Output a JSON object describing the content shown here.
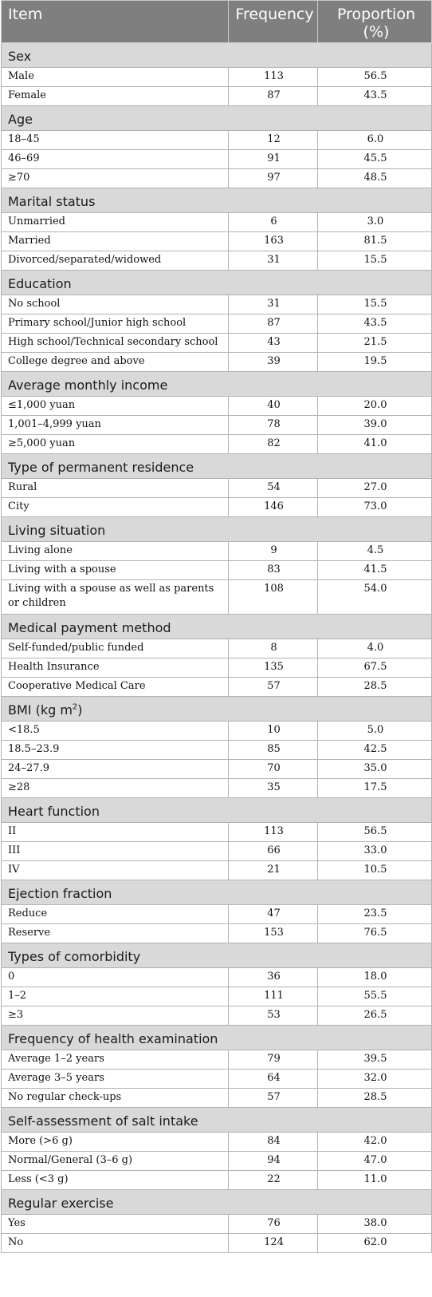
{
  "headers": {
    "item": "Item",
    "frequency": "Frequency",
    "proportion": "Proportion (%)"
  },
  "sections": [
    {
      "title": "Sex",
      "rows": [
        {
          "item": "Male",
          "frequency": "113",
          "proportion": "56.5"
        },
        {
          "item": "Female",
          "frequency": "87",
          "proportion": "43.5"
        }
      ]
    },
    {
      "title": "Age",
      "rows": [
        {
          "item": "18–45",
          "frequency": "12",
          "proportion": "6.0"
        },
        {
          "item": "46–69",
          "frequency": "91",
          "proportion": "45.5"
        },
        {
          "item": "≥70",
          "frequency": "97",
          "proportion": "48.5"
        }
      ]
    },
    {
      "title": "Marital status",
      "rows": [
        {
          "item": "Unmarried",
          "frequency": "6",
          "proportion": "3.0"
        },
        {
          "item": "Married",
          "frequency": "163",
          "proportion": "81.5"
        },
        {
          "item": "Divorced/separated/widowed",
          "frequency": "31",
          "proportion": "15.5"
        }
      ]
    },
    {
      "title": "Education",
      "rows": [
        {
          "item": "No school",
          "frequency": "31",
          "proportion": "15.5"
        },
        {
          "item": "Primary school/Junior high school",
          "frequency": "87",
          "proportion": "43.5"
        },
        {
          "item": "High school/Technical secondary school",
          "frequency": "43",
          "proportion": "21.5"
        },
        {
          "item": "College degree and above",
          "frequency": "39",
          "proportion": "19.5"
        }
      ]
    },
    {
      "title": "Average monthly income",
      "rows": [
        {
          "item": "≤1,000 yuan",
          "frequency": "40",
          "proportion": "20.0"
        },
        {
          "item": "1,001–4,999 yuan",
          "frequency": "78",
          "proportion": "39.0"
        },
        {
          "item": "≥5,000 yuan",
          "frequency": "82",
          "proportion": "41.0"
        }
      ]
    },
    {
      "title": "Type of permanent residence",
      "rows": [
        {
          "item": "Rural",
          "frequency": "54",
          "proportion": "27.0"
        },
        {
          "item": "City",
          "frequency": "146",
          "proportion": "73.0"
        }
      ]
    },
    {
      "title": "Living situation",
      "rows": [
        {
          "item": "Living alone",
          "frequency": "9",
          "proportion": "4.5"
        },
        {
          "item": "Living with a spouse",
          "frequency": "83",
          "proportion": "41.5"
        },
        {
          "item": "Living with a spouse as well as parents or children",
          "frequency": "108",
          "proportion": "54.0"
        }
      ]
    },
    {
      "title": "Medical payment method",
      "rows": [
        {
          "item": "Self-funded/public funded",
          "frequency": "8",
          "proportion": "4.0"
        },
        {
          "item": "Health Insurance",
          "frequency": "135",
          "proportion": "67.5"
        },
        {
          "item": "Cooperative Medical Care",
          "frequency": "57",
          "proportion": "28.5"
        }
      ]
    },
    {
      "title": "BMI (kg m",
      "title_sup": "2",
      "title_after": ")",
      "rows": [
        {
          "item": "<18.5",
          "frequency": "10",
          "proportion": "5.0"
        },
        {
          "item": "18.5–23.9",
          "frequency": "85",
          "proportion": "42.5"
        },
        {
          "item": "24–27.9",
          "frequency": "70",
          "proportion": "35.0"
        },
        {
          "item": "≥28",
          "frequency": "35",
          "proportion": "17.5"
        }
      ]
    },
    {
      "title": "Heart function",
      "rows": [
        {
          "item": "II",
          "frequency": "113",
          "proportion": "56.5"
        },
        {
          "item": "III",
          "frequency": "66",
          "proportion": "33.0"
        },
        {
          "item": "IV",
          "frequency": "21",
          "proportion": "10.5"
        }
      ]
    },
    {
      "title": "Ejection fraction",
      "rows": [
        {
          "item": "Reduce",
          "frequency": "47",
          "proportion": "23.5"
        },
        {
          "item": "Reserve",
          "frequency": "153",
          "proportion": "76.5"
        }
      ]
    },
    {
      "title": "Types of comorbidity",
      "rows": [
        {
          "item": "0",
          "frequency": "36",
          "proportion": "18.0"
        },
        {
          "item": "1–2",
          "frequency": "111",
          "proportion": "55.5"
        },
        {
          "item": "≥3",
          "frequency": "53",
          "proportion": "26.5"
        }
      ]
    },
    {
      "title": "Frequency of health examination",
      "rows": [
        {
          "item": "Average 1–2 years",
          "frequency": "79",
          "proportion": "39.5"
        },
        {
          "item": "Average 3–5 years",
          "frequency": "64",
          "proportion": "32.0"
        },
        {
          "item": "No regular check-ups",
          "frequency": "57",
          "proportion": "28.5"
        }
      ]
    },
    {
      "title": "Self-assessment of salt intake",
      "rows": [
        {
          "item": "More (>6 g)",
          "frequency": "84",
          "proportion": "42.0"
        },
        {
          "item": "Normal/General (3–6 g)",
          "frequency": "94",
          "proportion": "47.0"
        },
        {
          "item": "Less (<3 g)",
          "frequency": "22",
          "proportion": "11.0"
        }
      ]
    },
    {
      "title": "Regular exercise",
      "rows": [
        {
          "item": "Yes",
          "frequency": "76",
          "proportion": "38.0"
        },
        {
          "item": "No",
          "frequency": "124",
          "proportion": "62.0"
        }
      ]
    }
  ]
}
